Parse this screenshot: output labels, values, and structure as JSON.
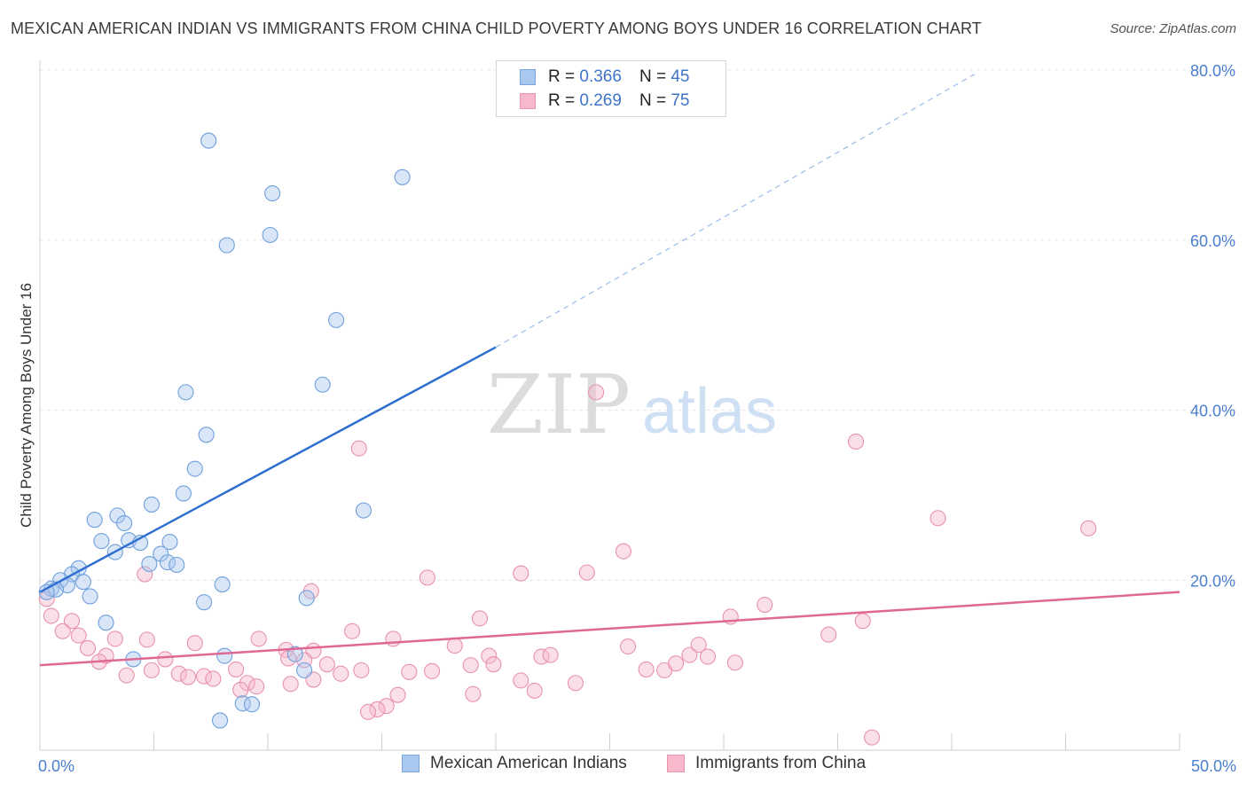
{
  "title": "MEXICAN AMERICAN INDIAN VS IMMIGRANTS FROM CHINA CHILD POVERTY AMONG BOYS UNDER 16 CORRELATION CHART",
  "source": "Source: ZipAtlas.com",
  "watermark": {
    "zip": "ZIP",
    "atlas": "atlas"
  },
  "legend": {
    "r_label": "R =",
    "n_label": "N =",
    "rows": [
      {
        "r": "0.366",
        "n": "45"
      },
      {
        "r": "0.269",
        "n": "75"
      }
    ]
  },
  "colors": {
    "blue_fill": "#a8c8f0",
    "blue_line": "#2e6fd0",
    "pink_fill": "#f7b8cb",
    "pink_line": "#e06894",
    "tick_text": "#4a7fd0"
  },
  "chart_data": {
    "type": "scatter",
    "title": "MEXICAN AMERICAN INDIAN VS IMMIGRANTS FROM CHINA CHILD POVERTY AMONG BOYS UNDER 16 CORRELATION CHART",
    "xlabel": "",
    "ylabel": "Child Poverty Among Boys Under 16",
    "xlim": [
      0,
      50
    ],
    "ylim": [
      0,
      80
    ],
    "x_tick_labels": [
      "0.0%",
      "50.0%"
    ],
    "y_ticks": [
      20,
      40,
      60,
      80
    ],
    "y_tick_labels": [
      "20.0%",
      "40.0%",
      "60.0%",
      "80.0%"
    ],
    "grid": true,
    "legend_position": "top-center",
    "series": [
      {
        "name": "Mexican American Indians",
        "color": "#a8c8f0",
        "trend": {
          "x": [
            0,
            20
          ],
          "y": [
            18.6,
            47.4
          ],
          "dashed_to": {
            "x": 41,
            "y": 79.5
          }
        },
        "points": [
          [
            7.4,
            71.7
          ],
          [
            10.2,
            65.5
          ],
          [
            15.9,
            67.4
          ],
          [
            8.2,
            59.4
          ],
          [
            10.1,
            60.6
          ],
          [
            13.0,
            50.6
          ],
          [
            6.4,
            42.1
          ],
          [
            12.4,
            43.0
          ],
          [
            7.3,
            37.1
          ],
          [
            6.8,
            33.1
          ],
          [
            6.3,
            30.2
          ],
          [
            4.9,
            28.9
          ],
          [
            2.4,
            27.1
          ],
          [
            3.4,
            27.6
          ],
          [
            3.7,
            26.7
          ],
          [
            14.2,
            28.2
          ],
          [
            2.7,
            24.6
          ],
          [
            3.9,
            24.7
          ],
          [
            4.4,
            24.4
          ],
          [
            5.7,
            24.5
          ],
          [
            3.3,
            23.3
          ],
          [
            5.3,
            23.1
          ],
          [
            4.8,
            21.9
          ],
          [
            5.6,
            22.1
          ],
          [
            6.0,
            21.8
          ],
          [
            1.7,
            21.4
          ],
          [
            1.4,
            20.7
          ],
          [
            0.9,
            20.0
          ],
          [
            1.9,
            19.8
          ],
          [
            0.5,
            19.0
          ],
          [
            1.2,
            19.4
          ],
          [
            0.7,
            18.9
          ],
          [
            0.3,
            18.6
          ],
          [
            8.0,
            19.5
          ],
          [
            2.2,
            18.1
          ],
          [
            7.2,
            17.4
          ],
          [
            11.7,
            17.9
          ],
          [
            2.9,
            15.0
          ],
          [
            4.1,
            10.7
          ],
          [
            8.1,
            11.1
          ],
          [
            11.2,
            11.3
          ],
          [
            11.6,
            9.4
          ],
          [
            8.9,
            5.5
          ],
          [
            9.3,
            5.4
          ],
          [
            7.9,
            3.5
          ]
        ]
      },
      {
        "name": "Immigrants from China",
        "color": "#f7b8cb",
        "trend": {
          "x": [
            0,
            50
          ],
          "y": [
            10.0,
            18.6
          ]
        },
        "points": [
          [
            0.3,
            17.8
          ],
          [
            0.5,
            15.8
          ],
          [
            1.4,
            15.2
          ],
          [
            1.0,
            14.0
          ],
          [
            1.7,
            13.5
          ],
          [
            3.3,
            13.1
          ],
          [
            2.1,
            12.0
          ],
          [
            2.9,
            11.1
          ],
          [
            2.6,
            10.4
          ],
          [
            4.7,
            13.0
          ],
          [
            6.8,
            12.6
          ],
          [
            9.6,
            13.1
          ],
          [
            10.8,
            11.8
          ],
          [
            12.0,
            11.7
          ],
          [
            13.7,
            14.0
          ],
          [
            15.5,
            13.1
          ],
          [
            5.5,
            10.7
          ],
          [
            3.8,
            8.8
          ],
          [
            4.9,
            9.4
          ],
          [
            6.1,
            9.0
          ],
          [
            6.5,
            8.6
          ],
          [
            7.2,
            8.7
          ],
          [
            7.6,
            8.4
          ],
          [
            8.6,
            9.5
          ],
          [
            9.1,
            7.9
          ],
          [
            8.8,
            7.1
          ],
          [
            9.5,
            7.5
          ],
          [
            10.9,
            10.8
          ],
          [
            11.6,
            10.6
          ],
          [
            12.6,
            10.1
          ],
          [
            13.2,
            9.0
          ],
          [
            14.1,
            9.4
          ],
          [
            12.0,
            8.3
          ],
          [
            11.0,
            7.8
          ],
          [
            16.2,
            9.2
          ],
          [
            17.2,
            9.3
          ],
          [
            18.2,
            12.3
          ],
          [
            18.9,
            10.0
          ],
          [
            19.3,
            15.5
          ],
          [
            19.7,
            11.1
          ],
          [
            19.9,
            10.1
          ],
          [
            21.1,
            8.2
          ],
          [
            22.0,
            11.0
          ],
          [
            22.4,
            11.2
          ],
          [
            23.5,
            7.9
          ],
          [
            25.8,
            12.2
          ],
          [
            26.6,
            9.5
          ],
          [
            27.4,
            9.4
          ],
          [
            27.9,
            10.2
          ],
          [
            28.5,
            11.2
          ],
          [
            28.9,
            12.4
          ],
          [
            29.3,
            11.0
          ],
          [
            30.5,
            10.3
          ],
          [
            30.3,
            15.7
          ],
          [
            31.8,
            17.1
          ],
          [
            34.6,
            13.6
          ],
          [
            36.1,
            15.2
          ],
          [
            15.2,
            5.2
          ],
          [
            15.7,
            6.5
          ],
          [
            14.8,
            4.8
          ],
          [
            14.4,
            4.5
          ],
          [
            19.0,
            6.6
          ],
          [
            21.7,
            7.0
          ],
          [
            11.9,
            18.7
          ],
          [
            17.0,
            20.3
          ],
          [
            21.1,
            20.8
          ],
          [
            24.0,
            20.9
          ],
          [
            25.6,
            23.4
          ],
          [
            4.6,
            20.7
          ],
          [
            14.0,
            35.5
          ],
          [
            24.4,
            42.1
          ],
          [
            35.8,
            36.3
          ],
          [
            39.4,
            27.3
          ],
          [
            46.0,
            26.1
          ],
          [
            36.5,
            1.5
          ]
        ]
      }
    ]
  },
  "bottom_legend": [
    "Mexican American Indians",
    "Immigrants from China"
  ]
}
